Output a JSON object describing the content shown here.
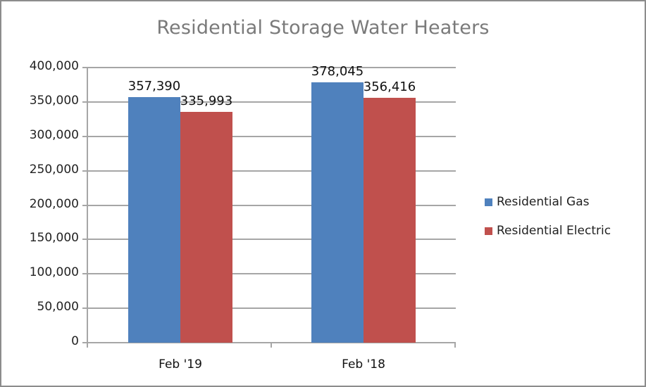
{
  "chart_data": {
    "type": "bar",
    "title": "Residential Storage Water Heaters",
    "xlabel": "",
    "ylabel": "",
    "categories": [
      "Feb '19",
      "Feb '18"
    ],
    "series": [
      {
        "name": "Residential Gas",
        "color": "#4f81bd",
        "values": [
          357390,
          378045
        ],
        "labels": [
          "357,390",
          "378,045"
        ]
      },
      {
        "name": "Residential Electric",
        "color": "#c0504d",
        "values": [
          335993,
          356416
        ],
        "labels": [
          "335,993",
          "356,416"
        ]
      }
    ],
    "ylim": [
      0,
      400000
    ],
    "yticks": [
      0,
      50000,
      100000,
      150000,
      200000,
      250000,
      300000,
      350000,
      400000
    ],
    "ytick_labels": [
      "0",
      "50,000",
      "100,000",
      "150,000",
      "200,000",
      "250,000",
      "300,000",
      "350,000",
      "400,000"
    ],
    "grid": true,
    "legend_position": "right"
  }
}
